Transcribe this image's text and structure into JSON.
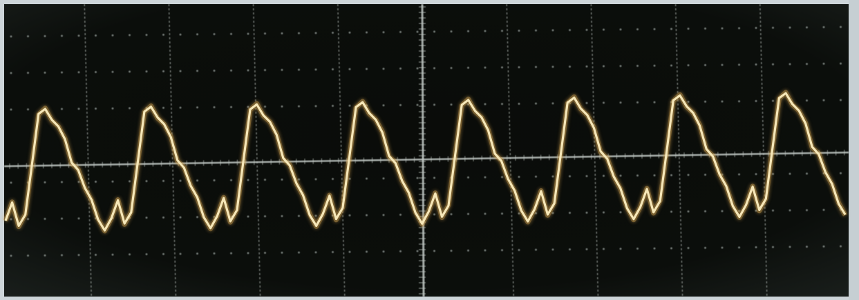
{
  "photo": {
    "subject": "oscilloscope-screen",
    "colors": {
      "screen_background": "#0b0d0a",
      "screen_background_edge": "#1a1f1c",
      "bezel": "#c9d2d6",
      "grid": "#bfc6c2",
      "grid_dots": "#9ea7a2",
      "trace": "#f6e7b8",
      "trace_glow": "#d6a653"
    },
    "display": {
      "horizontal_divisions": 10,
      "vertical_divisions": 8,
      "grid": true,
      "minor_tick_dots": true
    },
    "trace": {
      "shape": "periodic-distorted-wave",
      "visible_cycles": 8,
      "normalized_samples_per_cycle": [
        0.1,
        0.25,
        0.05,
        0.15,
        0.55,
        0.95,
        1.0,
        0.9,
        0.85,
        0.75,
        0.55,
        0.5,
        0.35,
        0.25,
        0.1,
        0.0
      ]
    }
  }
}
